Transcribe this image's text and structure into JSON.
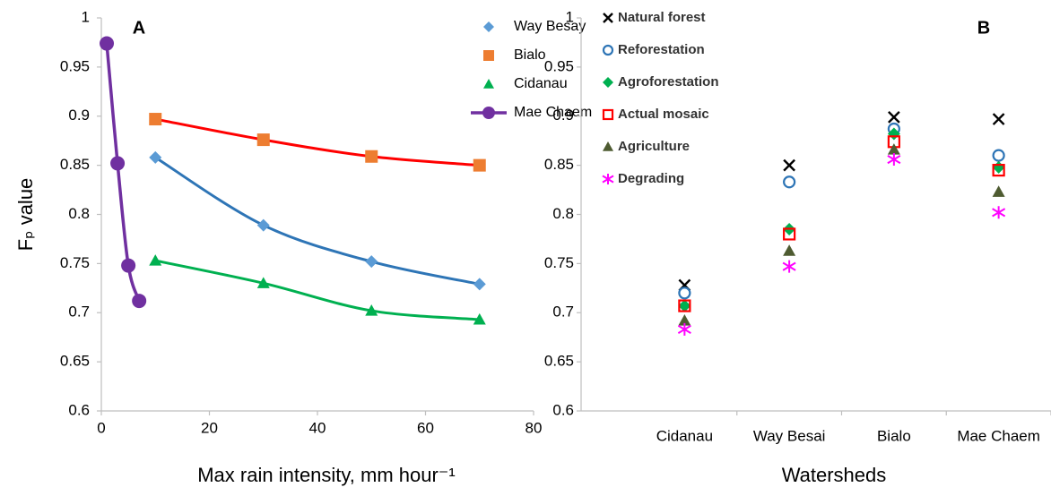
{
  "chart_data": [
    {
      "type": "scatter",
      "annotation": "A",
      "x_label": "Max rain intensity, mm hour⁻¹",
      "y_label": "Fₚ value",
      "xlim": [
        0,
        80
      ],
      "xticks": [
        0,
        20,
        40,
        60,
        80
      ],
      "ylim": [
        0.6,
        1
      ],
      "yticks": [
        0.6,
        0.65,
        0.7,
        0.75,
        0.8,
        0.85,
        0.9,
        0.95,
        1
      ],
      "legend": "top-right",
      "series": [
        {
          "name": "Way Besay",
          "color": "#5b9bd5",
          "marker": "diamond",
          "trend_color": "#2e75b6",
          "x": [
            10,
            30,
            50,
            70
          ],
          "values": [
            0.858,
            0.789,
            0.752,
            0.729
          ]
        },
        {
          "name": "Bialo",
          "color": "#ed7d31",
          "marker": "square",
          "trend_color": "#ff0000",
          "x": [
            10,
            30,
            50,
            70
          ],
          "values": [
            0.897,
            0.876,
            0.859,
            0.85
          ]
        },
        {
          "name": "Cidanau",
          "color": "#00b050",
          "marker": "triangle",
          "trend_color": "#00b050",
          "x": [
            10,
            30,
            50,
            70
          ],
          "values": [
            0.753,
            0.73,
            0.702,
            0.693
          ]
        },
        {
          "name": "Mae Chaem",
          "color": "#7030a0",
          "marker": "circle",
          "line": true,
          "x": [
            1,
            3,
            5,
            7
          ],
          "values": [
            0.974,
            0.852,
            0.748,
            0.712
          ]
        }
      ]
    },
    {
      "type": "categorical-scatter",
      "annotation": "B",
      "x_label": "Watersheds",
      "categories": [
        "Cidanau",
        "Way Besai",
        "Bialo",
        "Mae Chaem"
      ],
      "ylim": [
        0.6,
        1
      ],
      "yticks": [
        0.6,
        0.65,
        0.7,
        0.75,
        0.8,
        0.85,
        0.9,
        0.95,
        1
      ],
      "legend": "top-left",
      "series": [
        {
          "name": "Natural forest",
          "color": "#000000",
          "marker": "x",
          "values": [
            0.728,
            0.85,
            0.899,
            0.897
          ]
        },
        {
          "name": "Reforestation",
          "color": "#2e75b6",
          "marker": "open-circle",
          "values": [
            0.72,
            0.833,
            0.887,
            0.86
          ]
        },
        {
          "name": "Agroforestation",
          "color": "#00b050",
          "marker": "diamond",
          "values": [
            0.707,
            0.785,
            0.882,
            0.848
          ]
        },
        {
          "name": "Actual mosaic",
          "color": "#ff0000",
          "marker": "open-square",
          "values": [
            0.707,
            0.78,
            0.874,
            0.845
          ]
        },
        {
          "name": "Agriculture",
          "color": "#4e5b31",
          "marker": "triangle",
          "values": [
            0.692,
            0.763,
            0.866,
            0.823
          ]
        },
        {
          "name": "Degrading",
          "color": "#ff00ff",
          "marker": "asterisk",
          "values": [
            0.683,
            0.747,
            0.856,
            0.802
          ]
        }
      ]
    }
  ]
}
